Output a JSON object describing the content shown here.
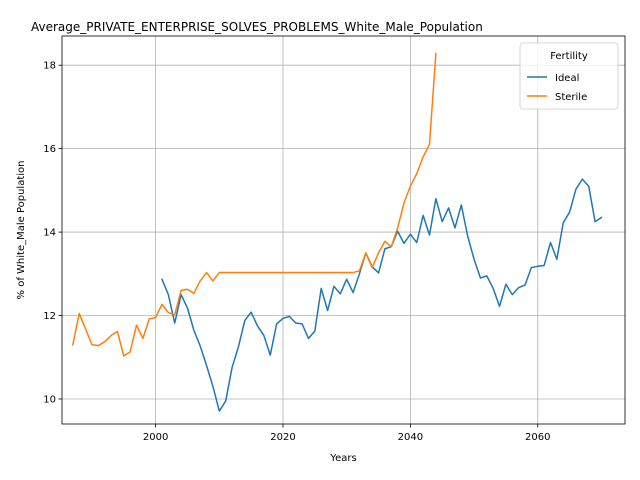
{
  "chart_data": {
    "type": "line",
    "title": "Average_PRIVATE_ENTERPRISE_SOLVES_PROBLEMS_White_Male_Population",
    "xlabel": "Years",
    "ylabel": "% of White_Male Population",
    "xlim": [
      1985.3,
      2073.7
    ],
    "ylim": [
      9.4,
      18.7
    ],
    "xticks": [
      2000,
      2020,
      2040,
      2060
    ],
    "yticks": [
      10,
      12,
      14,
      16,
      18
    ],
    "grid": true,
    "legend": {
      "title": "Fertility",
      "placement": "top-right"
    },
    "series": [
      {
        "name": "Ideal",
        "color": "#1f77b4",
        "x": [
          2001,
          2002,
          2003,
          2004,
          2005,
          2006,
          2007,
          2008,
          2009,
          2010,
          2011,
          2012,
          2013,
          2014,
          2015,
          2016,
          2017,
          2018,
          2019,
          2020,
          2021,
          2022,
          2023,
          2024,
          2025,
          2026,
          2027,
          2028,
          2029,
          2030,
          2031,
          2032,
          2033,
          2034,
          2035,
          2036,
          2037,
          2038,
          2039,
          2040,
          2041,
          2042,
          2043,
          2044,
          2045,
          2046,
          2047,
          2048,
          2049,
          2050,
          2051,
          2052,
          2053,
          2054,
          2055,
          2056,
          2057,
          2058,
          2059,
          2060,
          2061,
          2062,
          2063,
          2064,
          2065,
          2066,
          2067,
          2068,
          2069,
          2070
        ],
        "values": [
          12.87,
          12.5,
          11.82,
          12.5,
          12.18,
          11.65,
          11.27,
          10.8,
          10.3,
          9.71,
          9.95,
          10.75,
          11.25,
          11.88,
          12.08,
          11.75,
          11.52,
          11.05,
          11.8,
          11.93,
          11.98,
          11.82,
          11.8,
          11.45,
          11.63,
          12.65,
          12.12,
          12.7,
          12.52,
          12.87,
          12.55,
          13.0,
          13.5,
          13.17,
          13.02,
          13.6,
          13.65,
          14.02,
          13.73,
          13.95,
          13.75,
          14.4,
          13.93,
          14.8,
          14.25,
          14.58,
          14.1,
          14.65,
          13.9,
          13.35,
          12.9,
          12.95,
          12.65,
          12.22,
          12.75,
          12.5,
          12.67,
          12.73,
          13.15,
          13.18,
          13.2,
          13.75,
          13.35,
          14.22,
          14.48,
          15.03,
          15.27,
          15.1,
          14.25,
          14.35
        ]
      },
      {
        "name": "Sterile",
        "color": "#ff7f0e",
        "x": [
          1987,
          1988,
          1989,
          1990,
          1991,
          1992,
          1993,
          1994,
          1995,
          1996,
          1997,
          1998,
          1999,
          2000,
          2001,
          2002,
          2003,
          2004,
          2005,
          2006,
          2007,
          2008,
          2009,
          2010,
          2011,
          2012,
          2013,
          2014,
          2015,
          2016,
          2017,
          2018,
          2019,
          2020,
          2021,
          2022,
          2023,
          2024,
          2025,
          2026,
          2027,
          2028,
          2029,
          2030,
          2031,
          2032,
          2033,
          2034,
          2035,
          2036,
          2037,
          2038,
          2039,
          2040,
          2041,
          2042,
          2043,
          2044
        ],
        "values": [
          11.3,
          12.05,
          11.68,
          11.3,
          11.28,
          11.37,
          11.52,
          11.62,
          11.03,
          11.13,
          11.77,
          11.45,
          11.92,
          11.95,
          12.27,
          12.07,
          12.02,
          12.6,
          12.63,
          12.53,
          12.83,
          13.03,
          12.83,
          13.03,
          13.03,
          13.03,
          13.03,
          13.03,
          13.03,
          13.03,
          13.03,
          13.03,
          13.03,
          13.03,
          13.03,
          13.03,
          13.03,
          13.03,
          13.03,
          13.03,
          13.03,
          13.03,
          13.03,
          13.03,
          13.03,
          13.07,
          13.5,
          13.15,
          13.5,
          13.78,
          13.65,
          14.1,
          14.7,
          15.1,
          15.4,
          15.8,
          16.1,
          18.28
        ]
      }
    ]
  }
}
